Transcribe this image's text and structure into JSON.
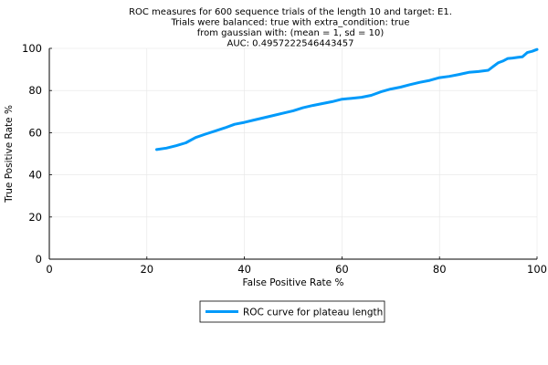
{
  "chart_data": {
    "type": "line",
    "title_lines": [
      "ROC measures for 600 sequence trials of the length 10 and target: E1.",
      "Trials were balanced: true with extra_condition: true",
      "from gaussian with: (mean = 1, sd = 10)",
      "AUC: 0.4957222546443457"
    ],
    "xlabel": "False Positive Rate %",
    "ylabel": "True Positive Rate %",
    "xlim": [
      0,
      100
    ],
    "ylim": [
      0,
      100
    ],
    "xticks": [
      0,
      20,
      40,
      60,
      80,
      100
    ],
    "yticks": [
      0,
      20,
      40,
      60,
      80,
      100
    ],
    "grid": true,
    "legend_position": "bottom-center (outside plot)",
    "series": [
      {
        "name": "ROC curve for plateau length",
        "color": "#009AFA",
        "x": [
          22,
          24,
          26,
          28,
          30,
          32,
          34,
          36,
          38,
          40,
          42,
          44,
          46,
          48,
          50,
          52,
          54,
          56,
          58,
          60,
          62,
          64,
          66,
          68,
          70,
          72,
          74,
          76,
          78,
          80,
          82,
          84,
          86,
          88,
          90,
          91,
          92,
          93,
          94,
          95,
          96,
          97,
          98,
          99,
          100
        ],
        "y": [
          52,
          52.7,
          53.8,
          55.2,
          57.7,
          59.3,
          60.8,
          62.3,
          64,
          64.9,
          66,
          67.1,
          68.2,
          69.3,
          70.4,
          71.8,
          72.9,
          73.8,
          74.7,
          75.9,
          76.3,
          76.8,
          77.7,
          79.4,
          80.7,
          81.6,
          82.8,
          83.9,
          84.8,
          86.1,
          86.7,
          87.6,
          88.6,
          89,
          89.6,
          91.4,
          93.1,
          94,
          95.2,
          95.4,
          95.7,
          96,
          98,
          98.6,
          99.5
        ]
      }
    ]
  }
}
